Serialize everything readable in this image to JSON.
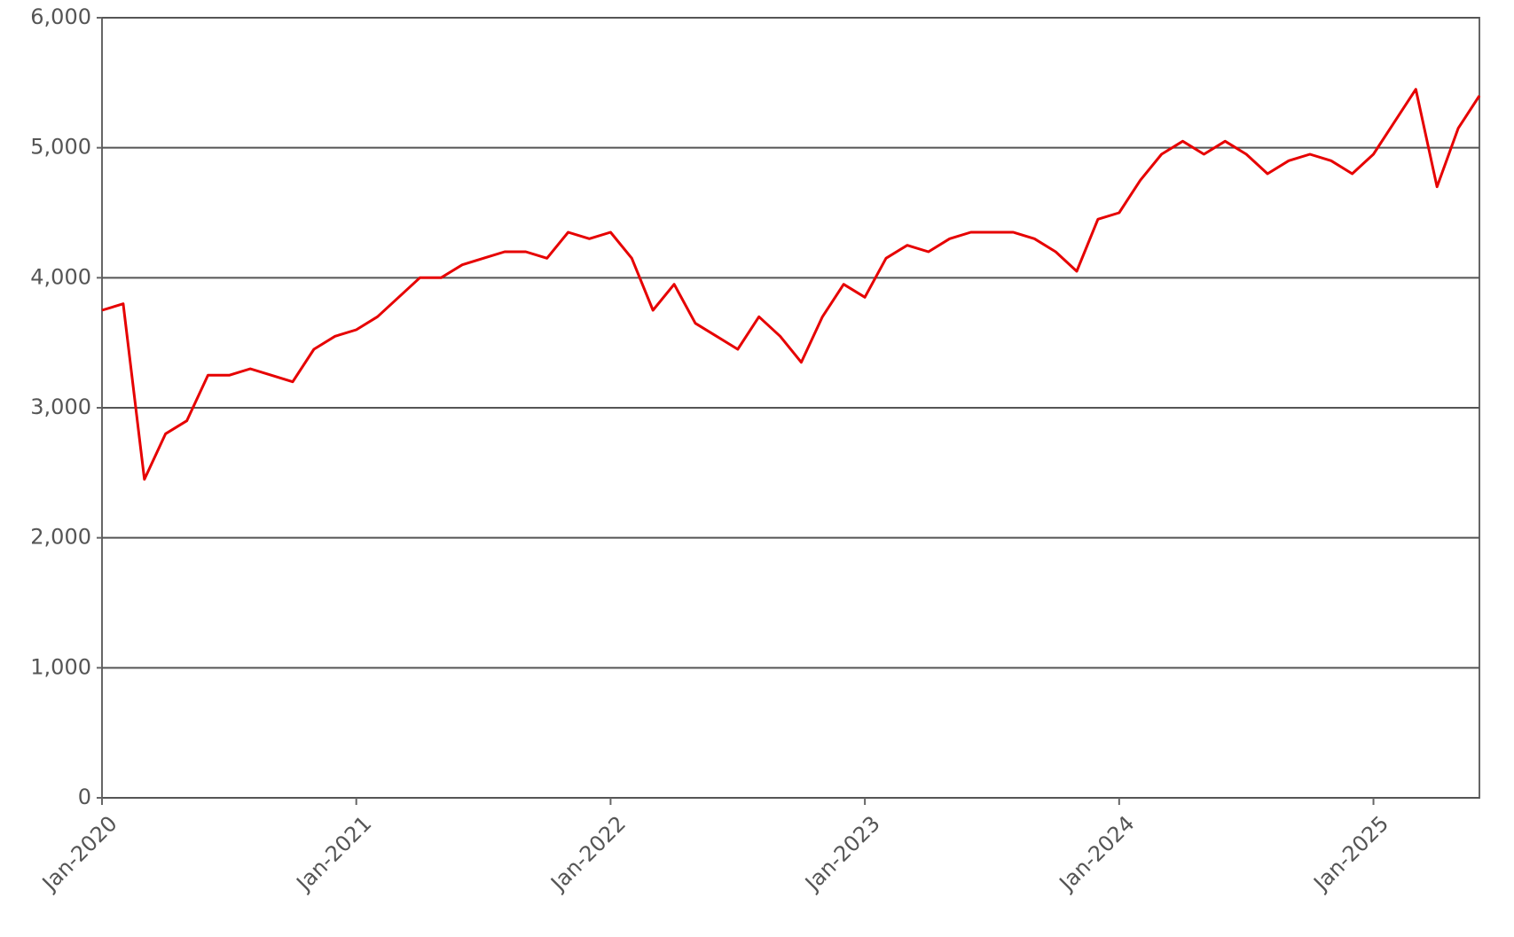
{
  "chart_data": {
    "type": "line",
    "x": [
      "2020-01",
      "2020-02",
      "2020-03",
      "2020-04",
      "2020-05",
      "2020-06",
      "2020-07",
      "2020-08",
      "2020-09",
      "2020-10",
      "2020-11",
      "2020-12",
      "2021-01",
      "2021-02",
      "2021-03",
      "2021-04",
      "2021-05",
      "2021-06",
      "2021-07",
      "2021-08",
      "2021-09",
      "2021-10",
      "2021-11",
      "2021-12",
      "2022-01",
      "2022-02",
      "2022-03",
      "2022-04",
      "2022-05",
      "2022-06",
      "2022-07",
      "2022-08",
      "2022-09",
      "2022-10",
      "2022-11",
      "2022-12",
      "2023-01",
      "2023-02",
      "2023-03",
      "2023-04",
      "2023-05",
      "2023-06",
      "2023-07",
      "2023-08",
      "2023-09",
      "2023-10",
      "2023-11",
      "2023-12",
      "2024-01",
      "2024-02",
      "2024-03",
      "2024-04",
      "2024-05",
      "2024-06",
      "2024-07",
      "2024-08",
      "2024-09",
      "2024-10",
      "2024-11",
      "2024-12",
      "2025-01",
      "2025-02",
      "2025-03",
      "2025-04",
      "2025-05",
      "2025-06"
    ],
    "series": [
      {
        "color": "#e60000",
        "values": [
          3750,
          3800,
          2450,
          2800,
          2900,
          3250,
          3250,
          3300,
          3250,
          3200,
          3450,
          3550,
          3600,
          3700,
          3850,
          4000,
          4000,
          4100,
          4150,
          4200,
          4200,
          4150,
          4350,
          4300,
          4350,
          4150,
          3750,
          3950,
          3650,
          3550,
          3450,
          3700,
          3550,
          3350,
          3700,
          3950,
          3850,
          4150,
          4250,
          4200,
          4300,
          4350,
          4350,
          4350,
          4300,
          4200,
          4050,
          4450,
          4500,
          4750,
          4950,
          5050,
          4950,
          5050,
          4950,
          4800,
          4900,
          4950,
          4900,
          4800,
          4950,
          5200,
          5450,
          4700,
          5150,
          5400
        ]
      }
    ],
    "xlim": [
      "2020-01",
      "2025-06"
    ],
    "xticks": [
      {
        "value": "2020-01",
        "label": "Jan-2020"
      },
      {
        "value": "2021-01",
        "label": "Jan-2021"
      },
      {
        "value": "2022-01",
        "label": "Jan-2022"
      },
      {
        "value": "2023-01",
        "label": "Jan-2023"
      },
      {
        "value": "2024-01",
        "label": "Jan-2024"
      },
      {
        "value": "2025-01",
        "label": "Jan-2025"
      }
    ],
    "ylim": [
      0,
      6000
    ],
    "yticks": [
      {
        "value": 0,
        "label": "0"
      },
      {
        "value": 1000,
        "label": "1,000"
      },
      {
        "value": 2000,
        "label": "2,000"
      },
      {
        "value": 3000,
        "label": "3,000"
      },
      {
        "value": 4000,
        "label": "4,000"
      },
      {
        "value": 5000,
        "label": "5,000"
      },
      {
        "value": 6000,
        "label": "6,000"
      }
    ],
    "grid": true
  }
}
